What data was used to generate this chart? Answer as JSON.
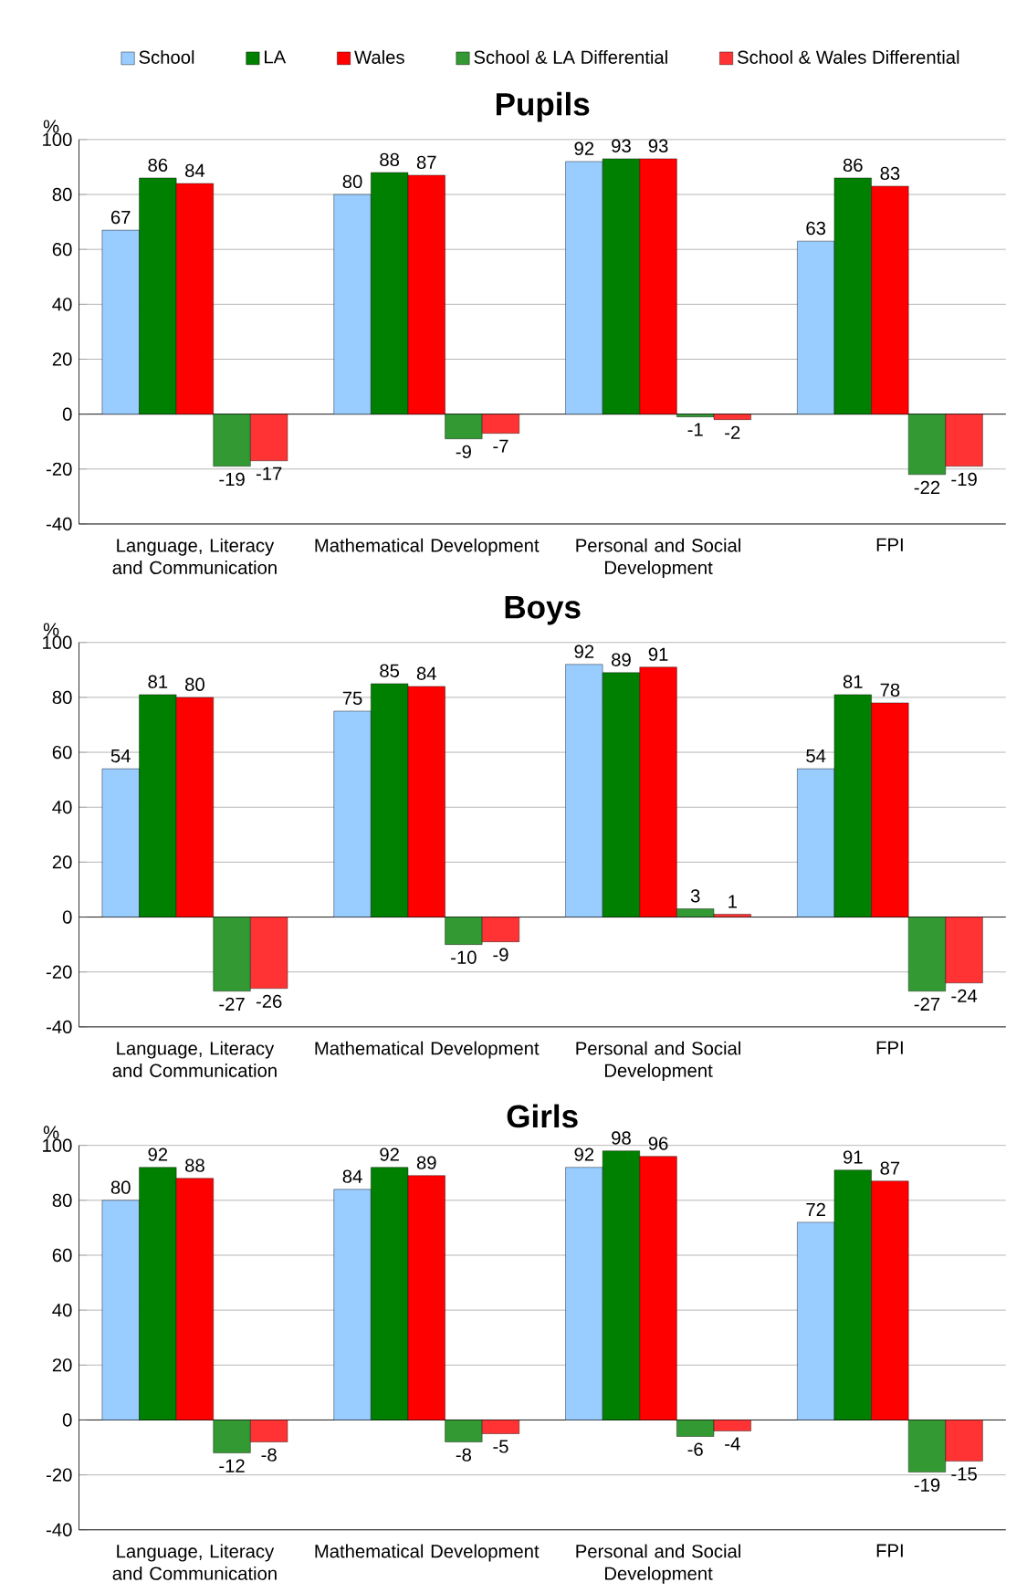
{
  "chart_data": [
    {
      "type": "bar",
      "title": "Pupils",
      "ylabel": "%",
      "categories": [
        "Language, Literacy and Communication",
        "Mathematical Development",
        "Personal and Social Development",
        "FPI"
      ],
      "series": [
        {
          "name": "School",
          "color": "#99ccff",
          "values": [
            67,
            80,
            92,
            63
          ]
        },
        {
          "name": "LA",
          "color": "#008000",
          "values": [
            86,
            88,
            93,
            86
          ]
        },
        {
          "name": "Wales",
          "color": "#ff0000",
          "values": [
            84,
            87,
            93,
            83
          ]
        },
        {
          "name": "School & LA Differential",
          "color": "#339933",
          "values": [
            -19,
            -9,
            -1,
            -22
          ]
        },
        {
          "name": "School & Wales Differential",
          "color": "#ff3333",
          "values": [
            -17,
            -7,
            -2,
            -19
          ]
        }
      ],
      "ylim": [
        -40,
        100
      ],
      "yticks": [
        -40,
        -20,
        0,
        20,
        40,
        60,
        80,
        100
      ],
      "grid": "y",
      "data_labels": true,
      "legend": "top"
    },
    {
      "type": "bar",
      "title": "Boys",
      "ylabel": "%",
      "categories": [
        "Language, Literacy and Communication",
        "Mathematical Development",
        "Personal and Social Development",
        "FPI"
      ],
      "series": [
        {
          "color": "#99ccff",
          "values": [
            54,
            75,
            92,
            54
          ]
        },
        {
          "color": "#008000",
          "values": [
            81,
            85,
            89,
            81
          ]
        },
        {
          "color": "#ff0000",
          "values": [
            80,
            84,
            91,
            78
          ]
        },
        {
          "color": "#339933",
          "values": [
            -27,
            -10,
            3,
            -27
          ]
        },
        {
          "color": "#ff3333",
          "values": [
            -26,
            -9,
            1,
            -24
          ]
        }
      ],
      "ylim": [
        -40,
        100
      ],
      "yticks": [
        -40,
        -20,
        0,
        20,
        40,
        60,
        80,
        100
      ],
      "grid": "y",
      "data_labels": true
    },
    {
      "type": "bar",
      "title": "Girls",
      "ylabel": "%",
      "categories": [
        "Language, Literacy and Communication",
        "Mathematical Development",
        "Personal and Social Development",
        "FPI"
      ],
      "series": [
        {
          "color": "#99ccff",
          "values": [
            80,
            84,
            92,
            72
          ]
        },
        {
          "color": "#008000",
          "values": [
            92,
            92,
            98,
            91
          ]
        },
        {
          "color": "#ff0000",
          "values": [
            88,
            89,
            96,
            87
          ]
        },
        {
          "color": "#339933",
          "values": [
            -12,
            -8,
            -6,
            -19
          ]
        },
        {
          "color": "#ff3333",
          "values": [
            -8,
            -5,
            -4,
            -15
          ]
        }
      ],
      "ylim": [
        -40,
        100
      ],
      "yticks": [
        -40,
        -20,
        0,
        20,
        40,
        60,
        80,
        100
      ],
      "grid": "y",
      "data_labels": true
    }
  ]
}
